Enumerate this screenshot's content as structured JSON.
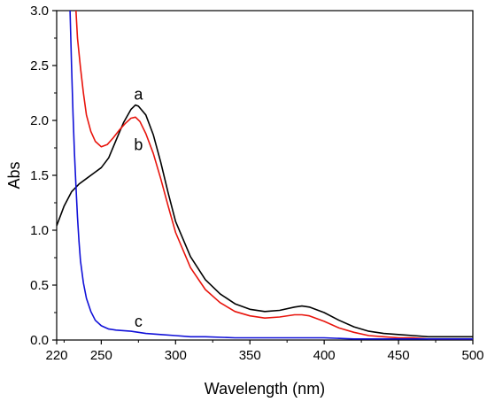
{
  "chart_data": {
    "type": "line",
    "title": "",
    "xlabel": "Wavelength (nm)",
    "ylabel": "Abs",
    "xlim": [
      220,
      500
    ],
    "ylim": [
      0.0,
      3.0
    ],
    "x_ticks": [
      220,
      250,
      300,
      350,
      400,
      450,
      500
    ],
    "x_tick_labels": [
      "220",
      "250",
      "300",
      "350",
      "400",
      "450",
      "500"
    ],
    "y_ticks": [
      0.0,
      0.5,
      1.0,
      1.5,
      2.0,
      2.5,
      3.0
    ],
    "y_tick_labels": [
      "0.0",
      "0.5",
      "1.0",
      "1.5",
      "2.0",
      "2.5",
      "3.0"
    ],
    "grid": false,
    "series": [
      {
        "name": "a",
        "color": "#000000",
        "x": [
          220,
          225,
          230,
          235,
          240,
          245,
          250,
          255,
          260,
          265,
          270,
          273,
          275,
          280,
          285,
          290,
          295,
          300,
          310,
          320,
          330,
          340,
          350,
          360,
          370,
          380,
          385,
          390,
          400,
          410,
          420,
          430,
          440,
          450,
          460,
          470,
          480,
          490,
          500
        ],
        "y": [
          1.04,
          1.22,
          1.35,
          1.42,
          1.47,
          1.52,
          1.57,
          1.66,
          1.82,
          1.98,
          2.1,
          2.14,
          2.13,
          2.05,
          1.87,
          1.62,
          1.34,
          1.08,
          0.76,
          0.55,
          0.42,
          0.33,
          0.28,
          0.26,
          0.27,
          0.3,
          0.31,
          0.3,
          0.25,
          0.18,
          0.12,
          0.08,
          0.06,
          0.05,
          0.04,
          0.03,
          0.03,
          0.03,
          0.03
        ]
      },
      {
        "name": "b",
        "color": "#e8140c",
        "x": [
          233,
          234,
          236,
          238,
          240,
          243,
          246,
          250,
          254,
          258,
          262,
          266,
          270,
          273,
          276,
          280,
          285,
          290,
          295,
          300,
          310,
          320,
          330,
          340,
          350,
          360,
          370,
          380,
          385,
          390,
          400,
          410,
          420,
          430,
          440,
          450,
          460,
          470,
          480,
          490,
          500
        ],
        "y": [
          3.0,
          2.75,
          2.48,
          2.25,
          2.05,
          1.9,
          1.81,
          1.76,
          1.78,
          1.84,
          1.91,
          1.97,
          2.02,
          2.03,
          1.99,
          1.88,
          1.7,
          1.47,
          1.22,
          0.98,
          0.66,
          0.46,
          0.34,
          0.26,
          0.22,
          0.2,
          0.21,
          0.23,
          0.23,
          0.22,
          0.17,
          0.11,
          0.07,
          0.04,
          0.03,
          0.02,
          0.02,
          0.01,
          0.01,
          0.01,
          0.01
        ]
      },
      {
        "name": "c",
        "color": "#1010d8",
        "x": [
          229,
          230,
          231,
          232,
          233,
          234,
          235,
          236,
          238,
          240,
          243,
          246,
          250,
          255,
          260,
          270,
          280,
          290,
          300,
          310,
          320,
          340,
          360,
          380,
          400,
          420,
          440,
          460,
          480,
          500
        ],
        "y": [
          3.0,
          2.5,
          2.05,
          1.7,
          1.4,
          1.12,
          0.9,
          0.72,
          0.52,
          0.38,
          0.26,
          0.18,
          0.13,
          0.1,
          0.09,
          0.08,
          0.06,
          0.05,
          0.04,
          0.03,
          0.03,
          0.02,
          0.02,
          0.02,
          0.02,
          0.01,
          0.01,
          0.01,
          0.01,
          0.01
        ]
      }
    ],
    "annotations": [
      {
        "text": "a",
        "x": 275,
        "y": 2.19
      },
      {
        "text": "b",
        "x": 275,
        "y": 1.73
      },
      {
        "text": "c",
        "x": 275,
        "y": 0.12
      }
    ]
  }
}
